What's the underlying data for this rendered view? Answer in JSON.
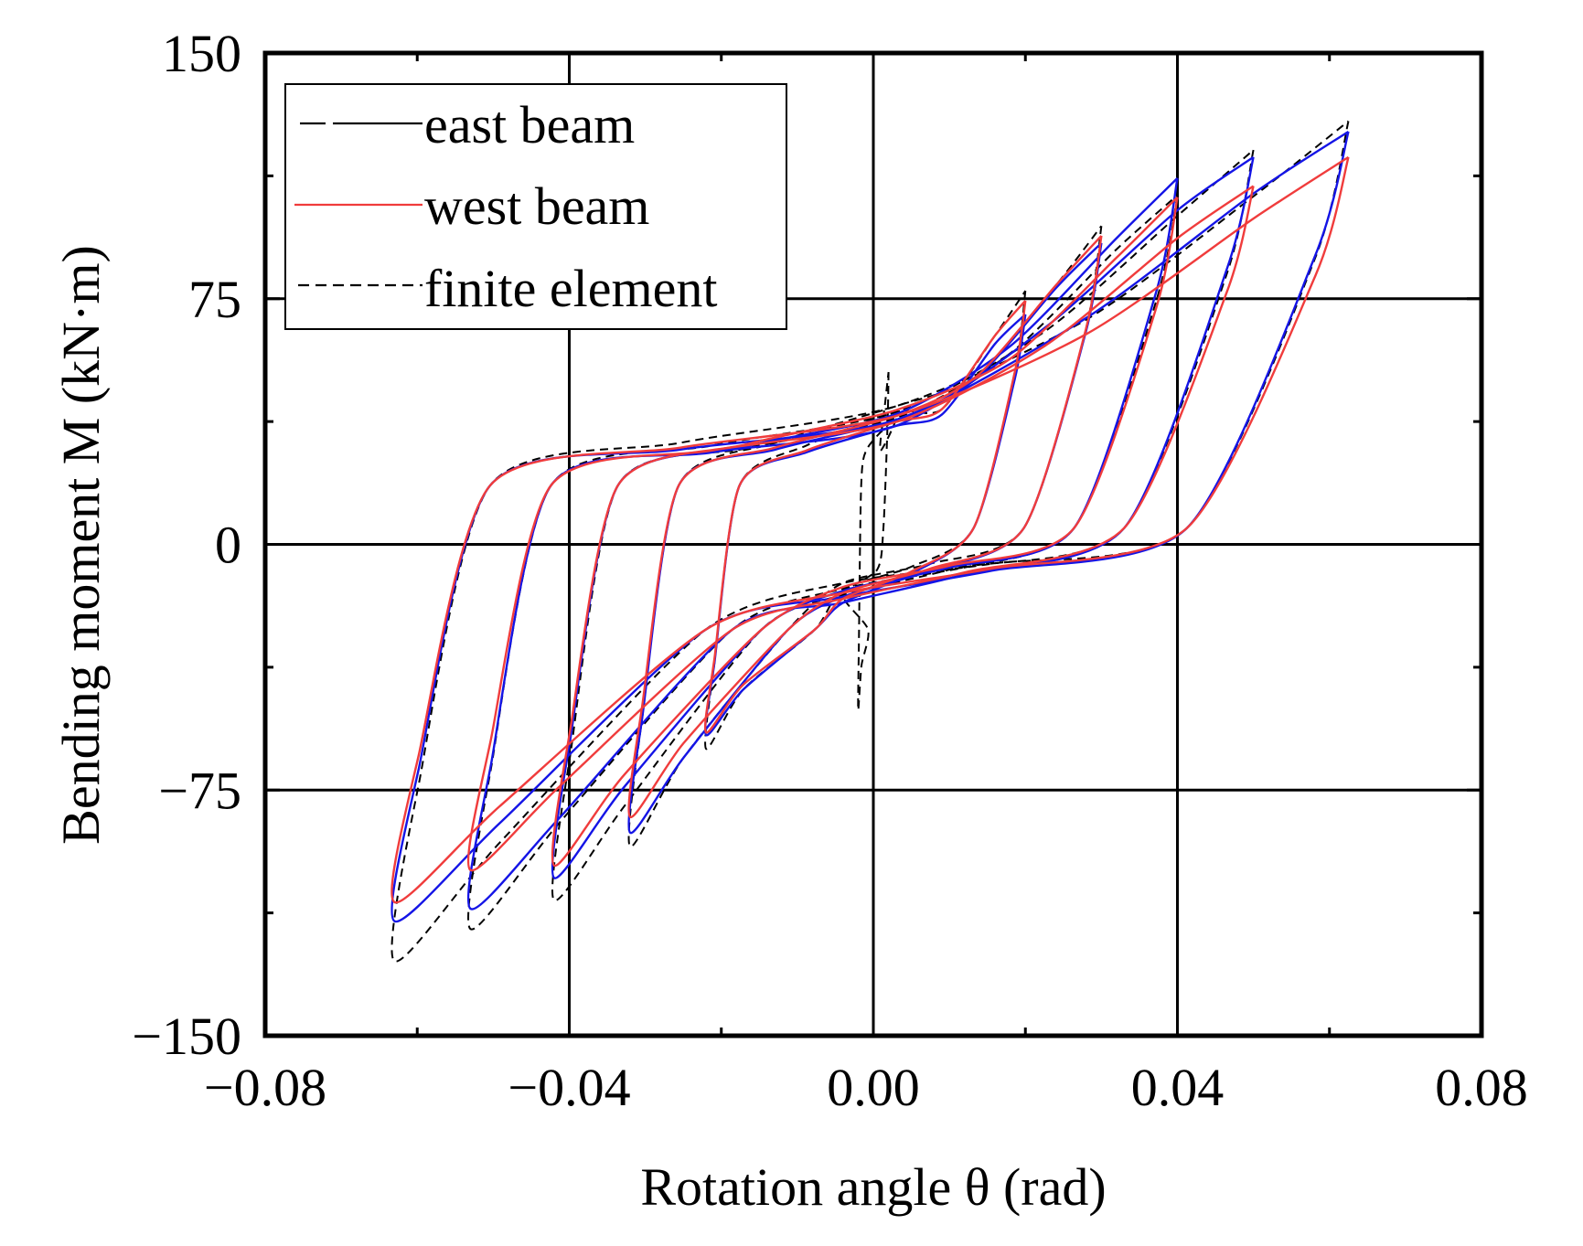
{
  "chart_data": {
    "type": "line",
    "title": "",
    "xlabel": "Rotation angle θ (rad)",
    "ylabel": "Bending moment M (kN·m)",
    "xlim": [
      -0.08,
      0.08
    ],
    "ylim": [
      -150,
      150
    ],
    "xticks": [
      -0.08,
      -0.04,
      0.0,
      0.04,
      0.08
    ],
    "xtick_labels": [
      "−0.08",
      "−0.04",
      "0.00",
      "0.04",
      "0.08"
    ],
    "yticks": [
      -150,
      -75,
      0,
      75,
      150
    ],
    "ytick_labels": [
      "−150",
      "−75",
      "0",
      "75",
      "150"
    ],
    "grid": true,
    "legend_position": "top-left",
    "colors": {
      "east": "#1414e6",
      "west": "#f03c3c",
      "fe": "#000000",
      "grid": "#000000"
    },
    "series": [
      {
        "name": "east beam",
        "legend_label": "east beam",
        "style": "solid",
        "loops": [
          {
            "amp_pos": 0.02,
            "amp_neg": -0.022,
            "m_pos": 72,
            "m_neg": -60
          },
          {
            "amp_pos": 0.03,
            "amp_neg": -0.032,
            "m_pos": 92,
            "m_neg": -88
          },
          {
            "amp_pos": 0.04,
            "amp_neg": -0.042,
            "m_pos": 110,
            "m_neg": -100
          },
          {
            "amp_pos": 0.05,
            "amp_neg": -0.053,
            "m_pos": 120,
            "m_neg": -113
          },
          {
            "amp_pos": 0.0625,
            "amp_neg": -0.063,
            "m_pos": 126,
            "m_neg": -115
          }
        ]
      },
      {
        "name": "west beam",
        "legend_label": "west beam",
        "style": "solid",
        "loops": [
          {
            "amp_pos": 0.02,
            "amp_neg": -0.022,
            "m_pos": 75,
            "m_neg": -58
          },
          {
            "amp_pos": 0.03,
            "amp_neg": -0.032,
            "m_pos": 93,
            "m_neg": -82
          },
          {
            "amp_pos": 0.04,
            "amp_neg": -0.042,
            "m_pos": 103,
            "m_neg": -95
          },
          {
            "amp_pos": 0.05,
            "amp_neg": -0.053,
            "m_pos": 110,
            "m_neg": -100
          },
          {
            "amp_pos": 0.0625,
            "amp_neg": -0.063,
            "m_pos": 117,
            "m_neg": -108
          }
        ]
      },
      {
        "name": "finite element",
        "legend_label": "finite element",
        "style": "dashed",
        "loops": [
          {
            "amp_pos": 0.002,
            "amp_neg": -0.002,
            "m_pos": 52,
            "m_neg": -50
          },
          {
            "amp_pos": 0.02,
            "amp_neg": -0.022,
            "m_pos": 75,
            "m_neg": -60
          },
          {
            "amp_pos": 0.03,
            "amp_neg": -0.032,
            "m_pos": 93,
            "m_neg": -88
          },
          {
            "amp_pos": 0.04,
            "amp_neg": -0.042,
            "m_pos": 106,
            "m_neg": -108
          },
          {
            "amp_pos": 0.05,
            "amp_neg": -0.053,
            "m_pos": 118,
            "m_neg": -115
          },
          {
            "amp_pos": 0.0625,
            "amp_neg": -0.063,
            "m_pos": 125,
            "m_neg": -123
          }
        ]
      }
    ]
  }
}
